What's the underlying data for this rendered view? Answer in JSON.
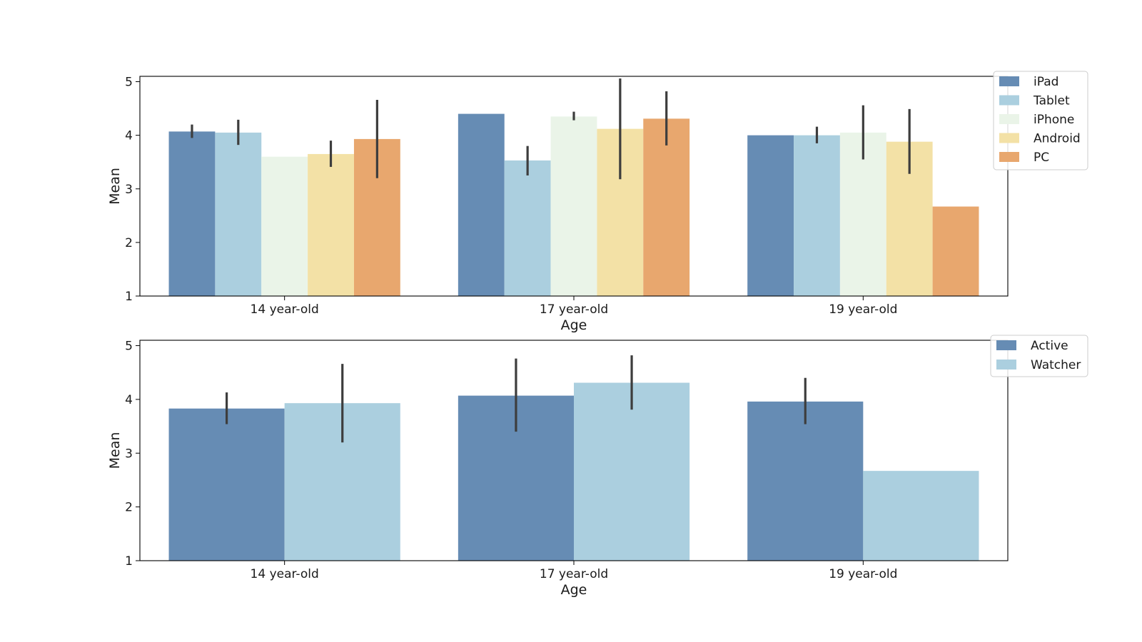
{
  "chart_data": [
    {
      "type": "bar",
      "xlabel": "Age",
      "ylabel": "Mean",
      "ylim": [
        1,
        5.1
      ],
      "yticks": [
        1,
        2,
        3,
        4,
        5
      ],
      "grid": false,
      "legend_position": "top-right",
      "categories": [
        "14 year-old",
        "17 year-old",
        "19 year-old"
      ],
      "series": [
        {
          "name": "iPad",
          "color": "#668cb4",
          "values": [
            4.07,
            4.4,
            4.0
          ],
          "err_low": [
            3.95,
            null,
            null
          ],
          "err_high": [
            4.2,
            null,
            null
          ]
        },
        {
          "name": "Tablet",
          "color": "#abcfdf",
          "values": [
            4.05,
            3.53,
            4.0
          ],
          "err_low": [
            3.82,
            3.25,
            3.85
          ],
          "err_high": [
            4.29,
            3.8,
            4.16
          ]
        },
        {
          "name": "iPhone",
          "color": "#eaf4e8",
          "values": [
            3.6,
            4.35,
            4.05
          ],
          "err_low": [
            null,
            4.28,
            3.55
          ],
          "err_high": [
            null,
            4.44,
            4.56
          ]
        },
        {
          "name": "Android",
          "color": "#f3e1a6",
          "values": [
            3.65,
            4.12,
            3.88
          ],
          "err_low": [
            3.41,
            3.18,
            3.28
          ],
          "err_high": [
            3.9,
            5.06,
            4.49
          ]
        },
        {
          "name": "PC",
          "color": "#e8a76e",
          "values": [
            3.93,
            4.31,
            2.67
          ],
          "err_low": [
            3.2,
            3.81,
            null
          ],
          "err_high": [
            4.66,
            4.82,
            null
          ]
        }
      ]
    },
    {
      "type": "bar",
      "xlabel": "Age",
      "ylabel": "Mean",
      "ylim": [
        1,
        5.1
      ],
      "yticks": [
        1,
        2,
        3,
        4,
        5
      ],
      "grid": false,
      "legend_position": "top-right",
      "categories": [
        "14 year-old",
        "17 year-old",
        "19 year-old"
      ],
      "series": [
        {
          "name": "Active",
          "color": "#668cb4",
          "values": [
            3.83,
            4.07,
            3.96
          ],
          "err_low": [
            3.54,
            3.4,
            3.54
          ],
          "err_high": [
            4.13,
            4.76,
            4.4
          ]
        },
        {
          "name": "Watcher",
          "color": "#abcfdf",
          "values": [
            3.93,
            4.31,
            2.67
          ],
          "err_low": [
            3.2,
            3.81,
            null
          ],
          "err_high": [
            4.66,
            4.82,
            null
          ]
        }
      ]
    }
  ]
}
